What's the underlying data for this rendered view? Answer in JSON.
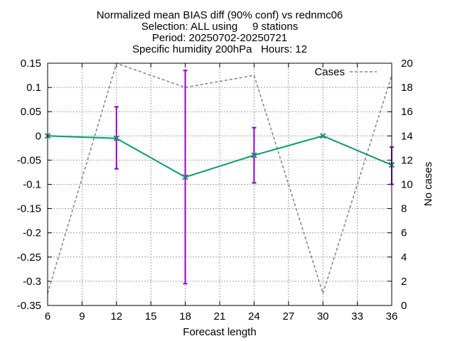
{
  "chart_data": {
    "type": "line",
    "title_lines": [
      "Normalized mean BIAS diff (90% conf) vs rednmc06",
      "Selection: ALL using     9 stations",
      "Period: 20250702-20250721",
      "Specific humidity 200hPa   Hours: 12"
    ],
    "xlabel": "Forecast length",
    "ylabel_right": "No cases",
    "xlim": [
      6,
      36
    ],
    "ylim": [
      -0.35,
      0.15
    ],
    "y2lim": [
      0,
      20
    ],
    "x_ticks": [
      6,
      9,
      12,
      15,
      18,
      21,
      24,
      27,
      30,
      33,
      36
    ],
    "y_ticks": [
      -0.35,
      -0.3,
      -0.25,
      -0.2,
      -0.15,
      -0.1,
      -0.05,
      0,
      0.05,
      0.1,
      0.15
    ],
    "y_tick_labels": [
      "-0.35",
      "-0.3",
      "-0.25",
      "-0.2",
      "-0.15",
      "-0.1",
      "-0.05",
      "0",
      "0.05",
      "0.1",
      "0.15"
    ],
    "y2_ticks": [
      0,
      2,
      4,
      6,
      8,
      10,
      12,
      14,
      16,
      18,
      20
    ],
    "grid": true,
    "legend_position": "top-right",
    "series": [
      {
        "name": "",
        "axis": "left",
        "color": "#009e73",
        "errorbar_color": "#9400d3",
        "x": [
          6,
          12,
          18,
          24,
          30,
          36
        ],
        "values": [
          0,
          -0.005,
          -0.085,
          -0.04,
          0,
          -0.06
        ],
        "err_low": [
          0,
          -0.068,
          -0.305,
          -0.097,
          0,
          -0.1
        ],
        "err_high": [
          0,
          0.06,
          0.135,
          0.017,
          0,
          -0.023
        ]
      },
      {
        "name": "Cases",
        "axis": "right",
        "color": "#888888",
        "dash": true,
        "x": [
          6,
          12,
          18,
          24,
          30,
          36
        ],
        "values": [
          1,
          20,
          18,
          19,
          1,
          19
        ]
      }
    ]
  }
}
